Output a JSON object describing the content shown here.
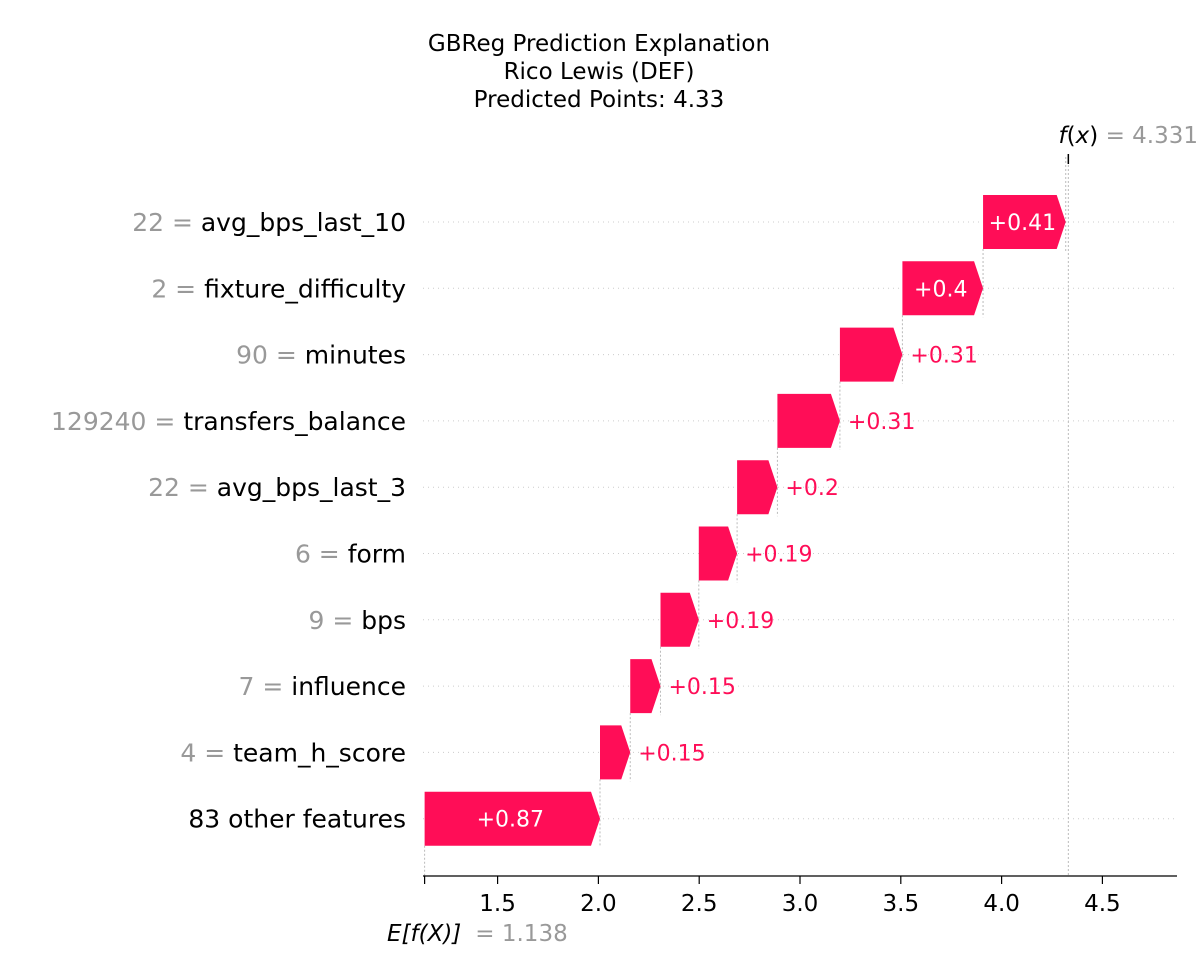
{
  "title_lines": [
    "GBReg Prediction Explanation",
    "Rico Lewis (DEF)",
    "Predicted Points: 4.33"
  ],
  "fx_label": {
    "func": "f",
    "var": "x",
    "value": "= 4.331"
  },
  "efx_label": {
    "text": "E[f(X)]",
    "value": "= 1.138"
  },
  "colors": {
    "positive": "#ff0d57",
    "feature_value": "#999999",
    "text": "#000000",
    "grid": "#cccccc"
  },
  "chart_data": {
    "type": "waterfall",
    "base_value": 1.138,
    "output_value": 4.331,
    "xlim": [
      1.13,
      4.87
    ],
    "x_ticks": [
      "1.5",
      "2.0",
      "2.5",
      "3.0",
      "3.5",
      "4.0",
      "4.5"
    ],
    "x_tick_values": [
      1.5,
      2.0,
      2.5,
      3.0,
      3.5,
      4.0,
      4.5
    ],
    "rows": [
      {
        "feature_value": "22",
        "feature": "avg_bps_last_10",
        "contribution": 0.41,
        "label": "+0.41"
      },
      {
        "feature_value": "2",
        "feature": "fixture_difficulty",
        "contribution": 0.4,
        "label": "+0.4"
      },
      {
        "feature_value": "90",
        "feature": "minutes",
        "contribution": 0.31,
        "label": "+0.31"
      },
      {
        "feature_value": "129240",
        "feature": "transfers_balance",
        "contribution": 0.31,
        "label": "+0.31"
      },
      {
        "feature_value": "22",
        "feature": "avg_bps_last_3",
        "contribution": 0.2,
        "label": "+0.2"
      },
      {
        "feature_value": "6",
        "feature": "form",
        "contribution": 0.19,
        "label": "+0.19"
      },
      {
        "feature_value": "9",
        "feature": "bps",
        "contribution": 0.19,
        "label": "+0.19"
      },
      {
        "feature_value": "7",
        "feature": "influence",
        "contribution": 0.15,
        "label": "+0.15"
      },
      {
        "feature_value": "4",
        "feature": "team_h_score",
        "contribution": 0.15,
        "label": "+0.15"
      },
      {
        "feature_value": "",
        "feature": "83 other features",
        "contribution": 0.87,
        "label": "+0.87"
      }
    ]
  }
}
